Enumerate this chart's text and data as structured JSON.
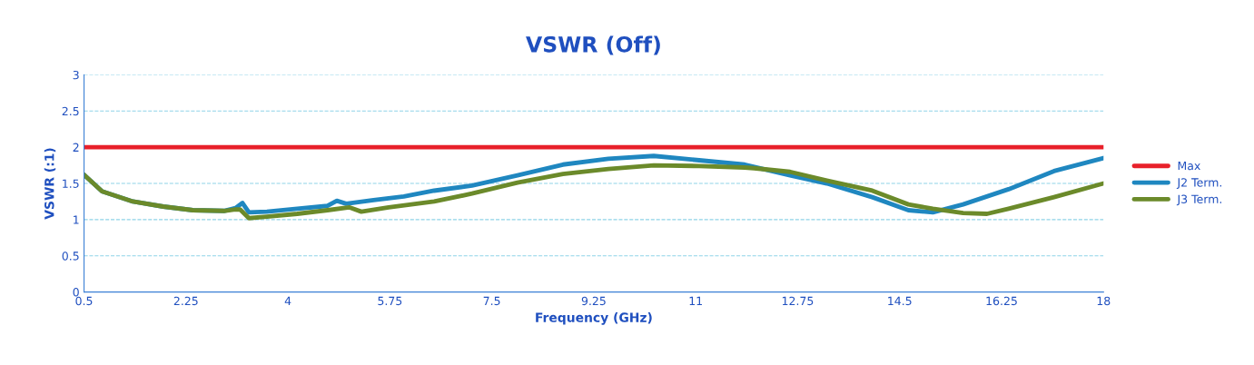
{
  "chart_data": {
    "type": "line",
    "title": "VSWR (Off)",
    "xlabel": "Frequency (GHz)",
    "ylabel": "VSWR (:1)",
    "xlim": [
      0.5,
      18
    ],
    "xticks": [
      0.5,
      2.25,
      4,
      5.75,
      7.5,
      9.25,
      11,
      12.75,
      14.5,
      16.25,
      18
    ],
    "ylim": [
      0,
      3
    ],
    "yticks": [
      0,
      {
        "value": 0.5,
        "label": "0.5"
      },
      1,
      {
        "value": 1.5,
        "label": "1.5"
      },
      2,
      {
        "value": 2.5,
        "label": "2.5"
      },
      3
    ],
    "grid": "y",
    "legend": "right",
    "marker": "none",
    "line_style": "solid",
    "series": [
      {
        "name": "Max",
        "color": "#e8202a",
        "x": [
          0.5,
          18
        ],
        "values": [
          2,
          2
        ]
      },
      {
        "name": "J2 Term.",
        "color": "#1f87c0",
        "x": [
          0.5,
          0.81,
          1.34,
          1.86,
          2.37,
          2.9,
          3.1,
          3.22,
          3.33,
          3.64,
          4.16,
          4.68,
          4.84,
          5.0,
          5.47,
          5.99,
          6.51,
          7.16,
          7.94,
          8.72,
          9.5,
          10.28,
          11.06,
          11.84,
          12.62,
          13.25,
          14.03,
          14.65,
          15.07,
          15.59,
          16.37,
          17.15,
          18.0
        ],
        "values": [
          1.62,
          1.39,
          1.25,
          1.18,
          1.13,
          1.12,
          1.16,
          1.23,
          1.1,
          1.11,
          1.15,
          1.19,
          1.26,
          1.22,
          1.27,
          1.32,
          1.4,
          1.47,
          1.61,
          1.76,
          1.84,
          1.88,
          1.82,
          1.76,
          1.61,
          1.5,
          1.31,
          1.13,
          1.1,
          1.21,
          1.42,
          1.67,
          1.85
        ]
      },
      {
        "name": "J3 Term.",
        "color": "#6b8a2a",
        "x": [
          0.5,
          0.81,
          1.34,
          1.86,
          2.37,
          2.9,
          3.1,
          3.18,
          3.33,
          3.64,
          4.16,
          4.68,
          5.05,
          5.26,
          5.73,
          6.51,
          7.16,
          7.94,
          8.72,
          9.5,
          10.28,
          11.06,
          11.84,
          12.0,
          12.62,
          13.25,
          14.03,
          14.65,
          15.07,
          15.59,
          16.0,
          16.37,
          17.15,
          18.0
        ],
        "values": [
          1.62,
          1.39,
          1.25,
          1.18,
          1.13,
          1.12,
          1.14,
          1.14,
          1.02,
          1.04,
          1.08,
          1.13,
          1.17,
          1.11,
          1.17,
          1.25,
          1.36,
          1.51,
          1.63,
          1.7,
          1.75,
          1.74,
          1.72,
          1.71,
          1.66,
          1.54,
          1.4,
          1.21,
          1.15,
          1.09,
          1.08,
          1.15,
          1.31,
          1.5
        ]
      }
    ]
  }
}
